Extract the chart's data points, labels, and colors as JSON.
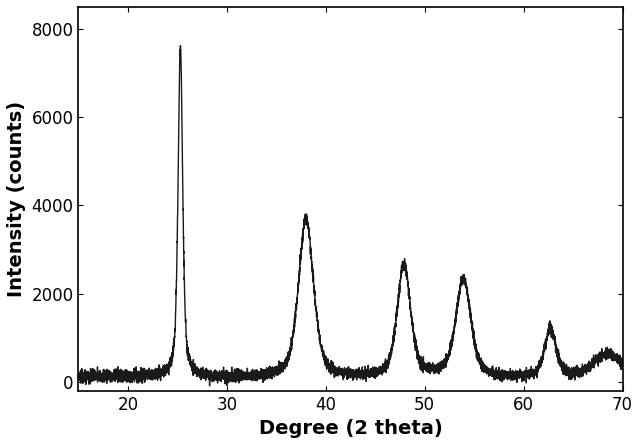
{
  "title": "",
  "xlabel": "Degree (2 theta)",
  "ylabel": "Intensity (counts)",
  "xlim": [
    15,
    70
  ],
  "ylim": [
    -200,
    8500
  ],
  "xticks": [
    20,
    30,
    40,
    50,
    60,
    70
  ],
  "yticks": [
    0,
    2000,
    4000,
    6000,
    8000
  ],
  "line_color": "#1a1a1a",
  "bg_color": "#ffffff",
  "noise_level": 80,
  "baseline": 80,
  "noise_seed": 42,
  "xlabel_fontsize": 14,
  "ylabel_fontsize": 14,
  "tick_fontsize": 12,
  "line_width": 1.0
}
